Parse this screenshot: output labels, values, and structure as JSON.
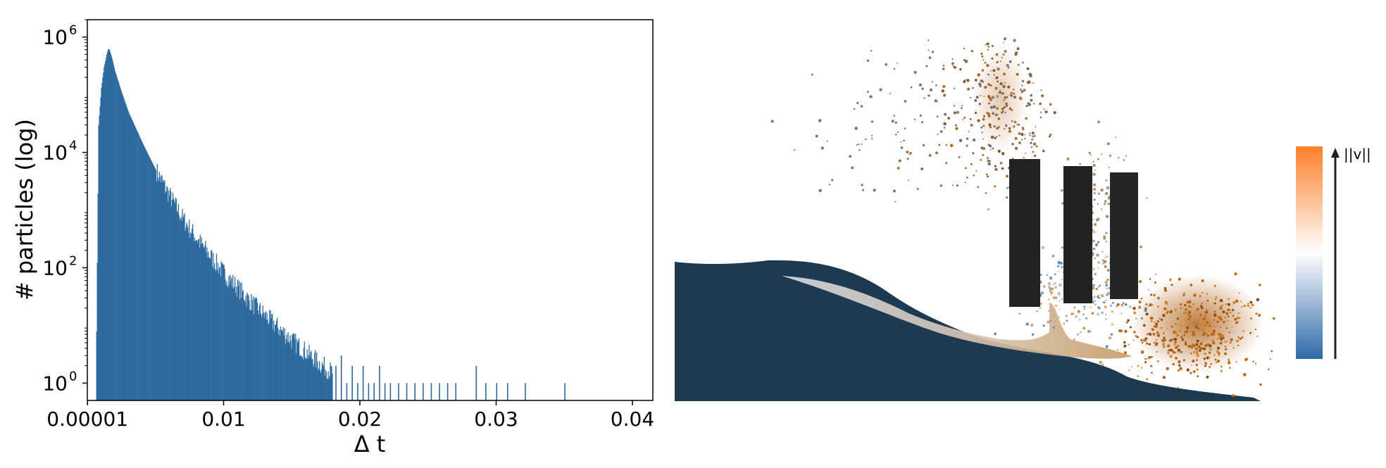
{
  "chart_data": [
    {
      "type": "bar",
      "xlabel": "Δ t",
      "ylabel": "# particles (log)",
      "xlim": [
        0.0,
        0.0415
      ],
      "ylim": [
        0.5,
        2000000
      ],
      "yscale": "log",
      "grid": false,
      "bar_color": "#2c6aa0",
      "x_ticks": [
        {
          "value": 1e-05,
          "label": "0.00001"
        },
        {
          "value": 0.01,
          "label": "0.01"
        },
        {
          "value": 0.02,
          "label": "0.02"
        },
        {
          "value": 0.03,
          "label": "0.03"
        },
        {
          "value": 0.04,
          "label": "0.04"
        }
      ],
      "y_ticks": [
        {
          "value": 1,
          "base": "10",
          "exp": "0"
        },
        {
          "value": 100,
          "base": "10",
          "exp": "2"
        },
        {
          "value": 10000,
          "base": "10",
          "exp": "4"
        },
        {
          "value": 1000000,
          "base": "10",
          "exp": "6"
        }
      ],
      "curve_points": [
        [
          0.0006,
          0.5
        ],
        [
          0.0008,
          30000
        ],
        [
          0.001,
          130000
        ],
        [
          0.0012,
          300000
        ],
        [
          0.0014,
          500000
        ],
        [
          0.0015,
          620000
        ],
        [
          0.0016,
          600000
        ],
        [
          0.0018,
          420000
        ],
        [
          0.002,
          260000
        ],
        [
          0.0025,
          110000
        ],
        [
          0.003,
          50000
        ],
        [
          0.004,
          15000
        ],
        [
          0.005,
          5000
        ],
        [
          0.006,
          1800
        ],
        [
          0.007,
          700
        ],
        [
          0.008,
          320
        ],
        [
          0.009,
          160
        ],
        [
          0.01,
          80
        ],
        [
          0.011,
          45
        ],
        [
          0.012,
          25
        ],
        [
          0.013,
          15
        ],
        [
          0.014,
          9
        ],
        [
          0.015,
          5.5
        ],
        [
          0.016,
          3.5
        ],
        [
          0.017,
          2.2
        ],
        [
          0.018,
          1.5
        ]
      ],
      "sparse_bars": [
        [
          0.0182,
          2
        ],
        [
          0.0186,
          3
        ],
        [
          0.019,
          1
        ],
        [
          0.0194,
          2
        ],
        [
          0.0198,
          1
        ],
        [
          0.0202,
          2
        ],
        [
          0.0206,
          1
        ],
        [
          0.021,
          1
        ],
        [
          0.0214,
          2
        ],
        [
          0.0218,
          1
        ],
        [
          0.0222,
          1
        ],
        [
          0.0228,
          1
        ],
        [
          0.0234,
          1
        ],
        [
          0.024,
          1
        ],
        [
          0.0246,
          1
        ],
        [
          0.0252,
          1
        ],
        [
          0.0258,
          1
        ],
        [
          0.0264,
          1
        ],
        [
          0.027,
          1
        ],
        [
          0.0285,
          2
        ],
        [
          0.0292,
          1
        ],
        [
          0.03,
          1
        ],
        [
          0.0308,
          1
        ],
        [
          0.0321,
          1
        ],
        [
          0.035,
          1
        ]
      ]
    },
    {
      "type": "colorbar",
      "label": "||v||",
      "colors": [
        "#2f6aa6",
        "#ffffff",
        "#ff7f2a"
      ]
    }
  ],
  "simulation": {
    "description_colors": {
      "fluid": "#1e3a52",
      "obstacle": "#222222"
    }
  }
}
